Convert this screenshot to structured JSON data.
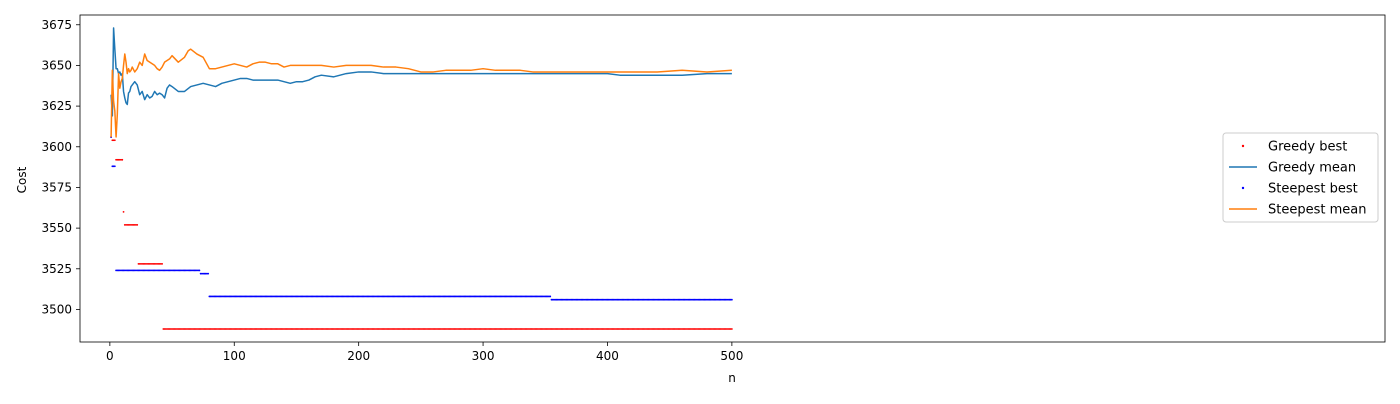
{
  "chart_data": {
    "type": "line",
    "title": "",
    "xlabel": "n",
    "ylabel": "Cost",
    "xlim": [
      -24,
      1025
    ],
    "ylim": [
      3480,
      3681
    ],
    "xticks": [
      0,
      100,
      200,
      300,
      400,
      500
    ],
    "yticks": [
      3500,
      3525,
      3550,
      3575,
      3600,
      3625,
      3650,
      3675
    ],
    "grid": false,
    "legend_position": "center-right",
    "series": [
      {
        "name": "Greedy best",
        "kind": "scatter",
        "color": "#ff0000",
        "segments": [
          {
            "from": 1,
            "to": 1,
            "value": 3606
          },
          {
            "from": 2,
            "to": 4,
            "value": 3604
          },
          {
            "from": 5,
            "to": 10,
            "value": 3592
          },
          {
            "from": 11,
            "to": 11,
            "value": 3560
          },
          {
            "from": 12,
            "to": 22,
            "value": 3552
          },
          {
            "from": 23,
            "to": 42,
            "value": 3528
          },
          {
            "from": 43,
            "to": 500,
            "value": 3488
          }
        ]
      },
      {
        "name": "Greedy mean",
        "kind": "line",
        "color": "#1f77b4",
        "points": [
          [
            1,
            3632
          ],
          [
            2,
            3619
          ],
          [
            3,
            3673
          ],
          [
            4,
            3660
          ],
          [
            5,
            3648
          ],
          [
            6,
            3648
          ],
          [
            7,
            3645
          ],
          [
            8,
            3646
          ],
          [
            9,
            3644
          ],
          [
            10,
            3645
          ],
          [
            11,
            3634
          ],
          [
            12,
            3630
          ],
          [
            13,
            3627
          ],
          [
            14,
            3626
          ],
          [
            15,
            3633
          ],
          [
            16,
            3634
          ],
          [
            17,
            3637
          ],
          [
            18,
            3638
          ],
          [
            20,
            3640
          ],
          [
            22,
            3638
          ],
          [
            24,
            3632
          ],
          [
            26,
            3634
          ],
          [
            28,
            3629
          ],
          [
            30,
            3632
          ],
          [
            32,
            3630
          ],
          [
            34,
            3631
          ],
          [
            36,
            3634
          ],
          [
            38,
            3632
          ],
          [
            40,
            3633
          ],
          [
            42,
            3632
          ],
          [
            44,
            3630
          ],
          [
            46,
            3636
          ],
          [
            48,
            3638
          ],
          [
            50,
            3637
          ],
          [
            55,
            3634
          ],
          [
            60,
            3634
          ],
          [
            65,
            3637
          ],
          [
            70,
            3638
          ],
          [
            75,
            3639
          ],
          [
            80,
            3638
          ],
          [
            85,
            3637
          ],
          [
            90,
            3639
          ],
          [
            95,
            3640
          ],
          [
            100,
            3641
          ],
          [
            105,
            3642
          ],
          [
            110,
            3642
          ],
          [
            115,
            3641
          ],
          [
            120,
            3641
          ],
          [
            125,
            3641
          ],
          [
            130,
            3641
          ],
          [
            135,
            3641
          ],
          [
            140,
            3640
          ],
          [
            145,
            3639
          ],
          [
            150,
            3640
          ],
          [
            155,
            3640
          ],
          [
            160,
            3641
          ],
          [
            165,
            3643
          ],
          [
            170,
            3644
          ],
          [
            180,
            3643
          ],
          [
            190,
            3645
          ],
          [
            200,
            3646
          ],
          [
            210,
            3646
          ],
          [
            220,
            3645
          ],
          [
            230,
            3645
          ],
          [
            240,
            3645
          ],
          [
            250,
            3645
          ],
          [
            260,
            3645
          ],
          [
            270,
            3645
          ],
          [
            280,
            3645
          ],
          [
            290,
            3645
          ],
          [
            300,
            3645
          ],
          [
            320,
            3645
          ],
          [
            340,
            3645
          ],
          [
            360,
            3645
          ],
          [
            380,
            3645
          ],
          [
            400,
            3645
          ],
          [
            410,
            3644
          ],
          [
            420,
            3644
          ],
          [
            440,
            3644
          ],
          [
            460,
            3644
          ],
          [
            480,
            3645
          ],
          [
            500,
            3645
          ]
        ]
      },
      {
        "name": "Steepest best",
        "kind": "scatter",
        "color": "#0000ff",
        "segments": [
          {
            "from": 1,
            "to": 1,
            "value": 3606
          },
          {
            "from": 2,
            "to": 4,
            "value": 3588
          },
          {
            "from": 5,
            "to": 72,
            "value": 3524
          },
          {
            "from": 73,
            "to": 79,
            "value": 3522
          },
          {
            "from": 80,
            "to": 354,
            "value": 3508
          },
          {
            "from": 355,
            "to": 500,
            "value": 3506
          }
        ]
      },
      {
        "name": "Steepest mean",
        "kind": "line",
        "color": "#ff7f0e",
        "points": [
          [
            1,
            3606
          ],
          [
            2,
            3647
          ],
          [
            3,
            3628
          ],
          [
            4,
            3622
          ],
          [
            5,
            3606
          ],
          [
            6,
            3620
          ],
          [
            7,
            3645
          ],
          [
            8,
            3636
          ],
          [
            9,
            3640
          ],
          [
            10,
            3642
          ],
          [
            11,
            3650
          ],
          [
            12,
            3657
          ],
          [
            13,
            3652
          ],
          [
            14,
            3645
          ],
          [
            15,
            3648
          ],
          [
            16,
            3646
          ],
          [
            17,
            3647
          ],
          [
            18,
            3649
          ],
          [
            20,
            3646
          ],
          [
            22,
            3648
          ],
          [
            24,
            3652
          ],
          [
            26,
            3650
          ],
          [
            28,
            3657
          ],
          [
            30,
            3653
          ],
          [
            32,
            3652
          ],
          [
            34,
            3651
          ],
          [
            36,
            3650
          ],
          [
            38,
            3648
          ],
          [
            40,
            3647
          ],
          [
            42,
            3649
          ],
          [
            44,
            3652
          ],
          [
            46,
            3653
          ],
          [
            48,
            3654
          ],
          [
            50,
            3656
          ],
          [
            55,
            3652
          ],
          [
            60,
            3655
          ],
          [
            63,
            3659
          ],
          [
            65,
            3660
          ],
          [
            70,
            3657
          ],
          [
            75,
            3655
          ],
          [
            80,
            3648
          ],
          [
            85,
            3648
          ],
          [
            90,
            3649
          ],
          [
            95,
            3650
          ],
          [
            100,
            3651
          ],
          [
            105,
            3650
          ],
          [
            110,
            3649
          ],
          [
            115,
            3651
          ],
          [
            120,
            3652
          ],
          [
            125,
            3652
          ],
          [
            130,
            3651
          ],
          [
            135,
            3651
          ],
          [
            140,
            3649
          ],
          [
            145,
            3650
          ],
          [
            150,
            3650
          ],
          [
            160,
            3650
          ],
          [
            170,
            3650
          ],
          [
            180,
            3649
          ],
          [
            190,
            3650
          ],
          [
            200,
            3650
          ],
          [
            210,
            3650
          ],
          [
            220,
            3649
          ],
          [
            230,
            3649
          ],
          [
            240,
            3648
          ],
          [
            250,
            3646
          ],
          [
            260,
            3646
          ],
          [
            270,
            3647
          ],
          [
            280,
            3647
          ],
          [
            290,
            3647
          ],
          [
            300,
            3648
          ],
          [
            310,
            3647
          ],
          [
            320,
            3647
          ],
          [
            330,
            3647
          ],
          [
            340,
            3646
          ],
          [
            350,
            3646
          ],
          [
            360,
            3646
          ],
          [
            370,
            3646
          ],
          [
            380,
            3646
          ],
          [
            390,
            3646
          ],
          [
            400,
            3646
          ],
          [
            420,
            3646
          ],
          [
            440,
            3646
          ],
          [
            460,
            3647
          ],
          [
            480,
            3646
          ],
          [
            500,
            3647
          ]
        ]
      }
    ]
  }
}
